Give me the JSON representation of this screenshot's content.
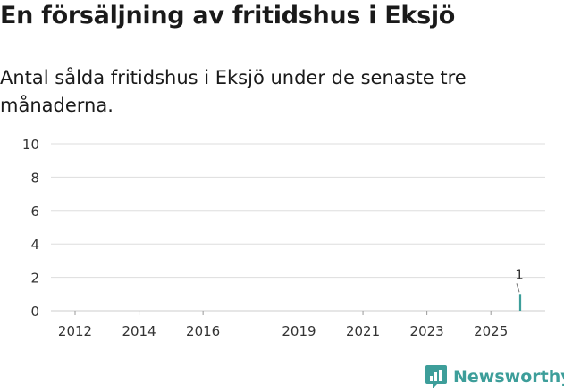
{
  "header": {
    "title": "En försäljning av fritidshus i Eksjö",
    "subtitle": "Antal sålda fritidshus i Eksjö under de senaste tre månaderna."
  },
  "brand": {
    "name": "Newsworthy"
  },
  "colors": {
    "bar": "#6e6e73",
    "highlight": "#3d9e9a",
    "grid": "#dddddd",
    "text": "#333333"
  },
  "chart_data": {
    "type": "bar",
    "title": "",
    "xlabel": "",
    "ylabel": "",
    "ylim": [
      0,
      10
    ],
    "yticks": [
      0,
      2,
      4,
      6,
      8,
      10
    ],
    "xticks": [
      {
        "label": "2012",
        "index": 0
      },
      {
        "label": "2014",
        "index": 24
      },
      {
        "label": "2016",
        "index": 48
      },
      {
        "label": "2019",
        "index": 84
      },
      {
        "label": "2021",
        "index": 108
      },
      {
        "label": "2023",
        "index": 132
      },
      {
        "label": "2025",
        "index": 156
      }
    ],
    "start": "2012-01",
    "values": [
      0,
      0,
      0,
      0,
      0,
      0,
      0,
      0,
      0,
      0,
      0,
      0,
      0,
      0,
      0,
      0,
      0,
      0,
      0,
      0,
      0,
      0,
      0,
      0,
      0,
      0,
      0,
      0,
      0,
      0,
      0,
      0,
      0,
      0,
      0,
      0,
      0,
      0,
      0,
      0,
      0,
      0,
      0,
      0,
      0,
      0,
      0,
      0,
      0,
      0,
      0,
      0,
      0,
      0,
      0,
      0,
      0,
      0,
      0,
      0,
      0,
      0,
      0,
      0,
      0,
      0,
      0,
      0,
      0,
      0,
      0,
      0,
      0,
      0,
      0,
      0,
      0,
      0,
      0,
      0,
      0,
      0,
      0,
      0,
      0,
      0,
      0,
      0,
      0,
      0,
      0,
      0,
      0,
      0,
      0,
      0,
      0,
      0,
      0,
      0,
      0,
      0,
      0,
      0,
      0,
      0,
      0,
      0,
      0,
      0,
      0,
      0,
      0,
      0,
      0,
      0,
      0,
      0,
      0,
      0,
      0,
      0,
      0,
      0,
      0,
      0,
      0,
      0,
      0,
      0,
      0,
      0,
      0,
      0,
      0,
      0,
      0,
      0,
      0,
      0,
      0,
      0,
      0,
      0,
      0,
      0,
      0,
      0,
      0,
      0,
      0,
      0,
      0,
      0,
      0,
      0,
      0,
      0,
      0,
      0,
      0,
      0,
      0,
      0,
      0,
      0,
      0,
      1
    ],
    "annotation": {
      "label": "1",
      "index": 167
    }
  }
}
